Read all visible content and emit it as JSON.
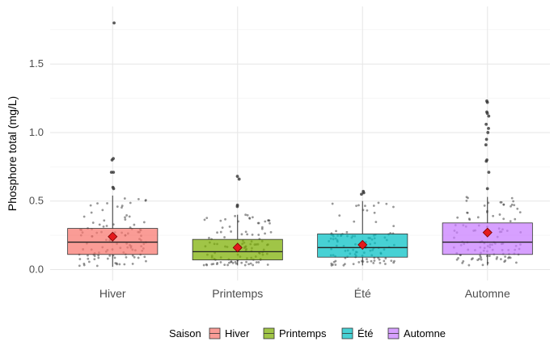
{
  "chart_data": {
    "type": "box",
    "title": "",
    "xlabel": "",
    "ylabel": "Phosphore total (mg/L)",
    "ylim": [
      -0.08,
      1.92
    ],
    "yticks": [
      0.0,
      0.5,
      1.0,
      1.5
    ],
    "ytick_labels": [
      "0.0",
      "0.5",
      "1.0",
      "1.5"
    ],
    "categories": [
      "Hiver",
      "Printemps",
      "Été",
      "Automne"
    ],
    "legend": {
      "title": "Saison",
      "position": "bottom",
      "entries": [
        "Hiver",
        "Printemps",
        "Été",
        "Automne"
      ]
    },
    "grid": true,
    "colors": {
      "Hiver": "#F8766D",
      "Printemps": "#7CAE00",
      "Été": "#00BFC4",
      "Automne": "#C77CFF",
      "mean_marker": "#E41A1C"
    },
    "boxes": [
      {
        "name": "Hiver",
        "q1": 0.11,
        "median": 0.2,
        "q3": 0.3,
        "whisker_low": 0.02,
        "whisker_high": 0.54,
        "mean": 0.24,
        "outliers": [
          0.59,
          0.6,
          0.71,
          0.71,
          0.8,
          0.81,
          1.8
        ]
      },
      {
        "name": "Printemps",
        "q1": 0.07,
        "median": 0.13,
        "q3": 0.22,
        "whisker_low": 0.03,
        "whisker_high": 0.4,
        "mean": 0.16,
        "outliers": [
          0.46,
          0.47,
          0.66,
          0.68
        ]
      },
      {
        "name": "Été",
        "q1": 0.09,
        "median": 0.16,
        "q3": 0.26,
        "whisker_low": 0.03,
        "whisker_high": 0.5,
        "mean": 0.18,
        "outliers": [
          0.55,
          0.56,
          0.57
        ]
      },
      {
        "name": "Automne",
        "q1": 0.11,
        "median": 0.2,
        "q3": 0.34,
        "whisker_low": 0.03,
        "whisker_high": 0.53,
        "mean": 0.27,
        "outliers": [
          0.59,
          0.71,
          0.79,
          0.8,
          0.91,
          0.95,
          1.0,
          1.03,
          1.06,
          1.12,
          1.14,
          1.15,
          1.22,
          1.23
        ]
      }
    ]
  }
}
